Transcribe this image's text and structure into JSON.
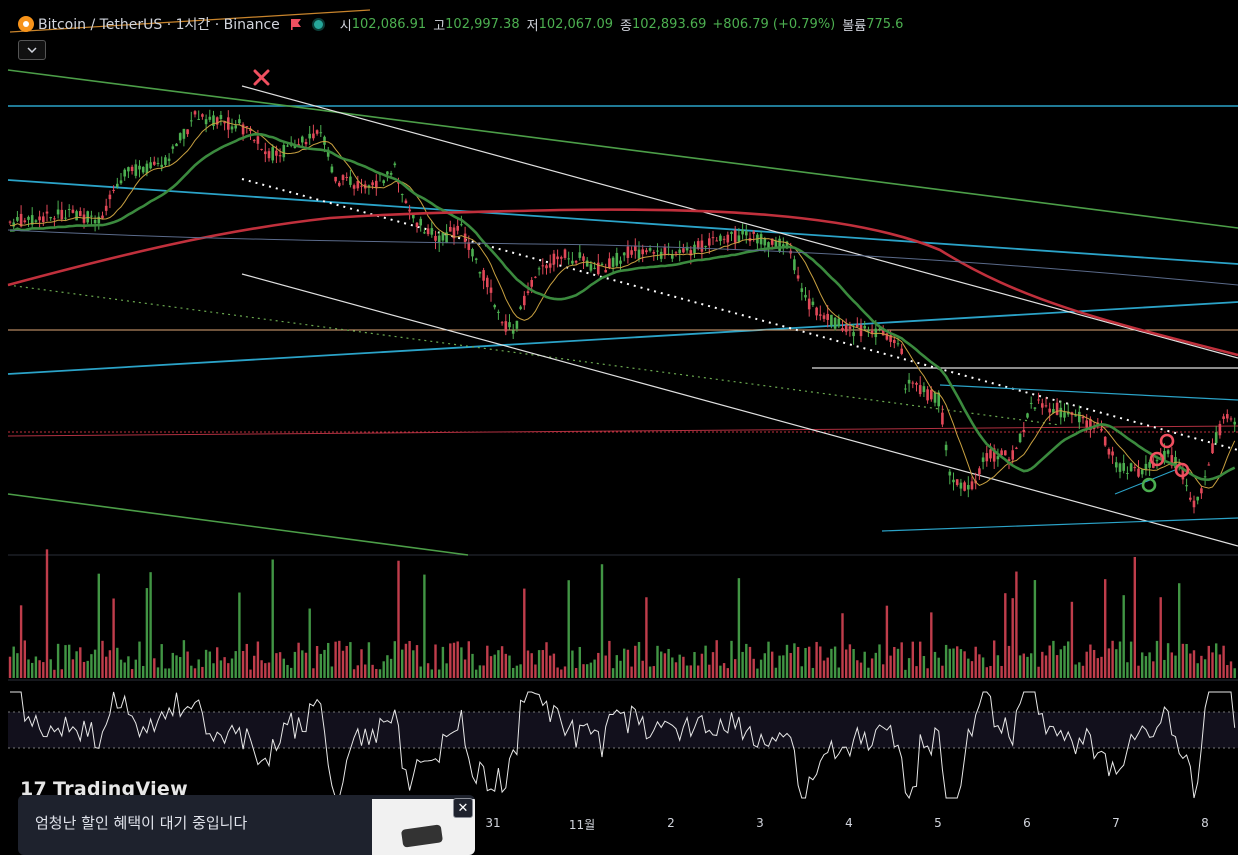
{
  "header": {
    "symbol": "Bitcoin / TetherUS · 1시간 · Binance",
    "open_label": "시",
    "open": "102,086.91",
    "high_label": "고",
    "high": "102,997.38",
    "low_label": "저",
    "low": "102,067.09",
    "close_label": "종",
    "close": "102,893.69",
    "change": "+806.79 (+0.79%)",
    "volume_label": "볼륨",
    "volume": "775.6",
    "collapse_icon": "chevron-down-icon"
  },
  "colors": {
    "background": "#000000",
    "up": "#4caf50",
    "down": "#e04858",
    "ma_red": "#c0303c",
    "ma_green": "#3b8a3e",
    "ma_thin": "#c8a040",
    "trend_cyan": "#2ba3c8",
    "trend_green": "#4c9e48"
  },
  "chart_data": {
    "type": "candlestick",
    "interval": "1시간",
    "price_path_note": "",
    "x_tick_labels": [
      "31",
      "11월",
      "2",
      "3",
      "4",
      "5",
      "6",
      "7",
      "8"
    ],
    "last_ohlc": {
      "open": 102086.91,
      "high": 102997.38,
      "low": 102067.09,
      "close": 102893.69
    },
    "last_volume": 775.6,
    "indicators": [
      "volume",
      "oscillator"
    ]
  },
  "watermark": {
    "brand": "TradingView"
  },
  "ad": {
    "title": "엄청난 할인 혜택이 대기 중입니다",
    "subtitle": "",
    "close_icon": "close-icon"
  }
}
